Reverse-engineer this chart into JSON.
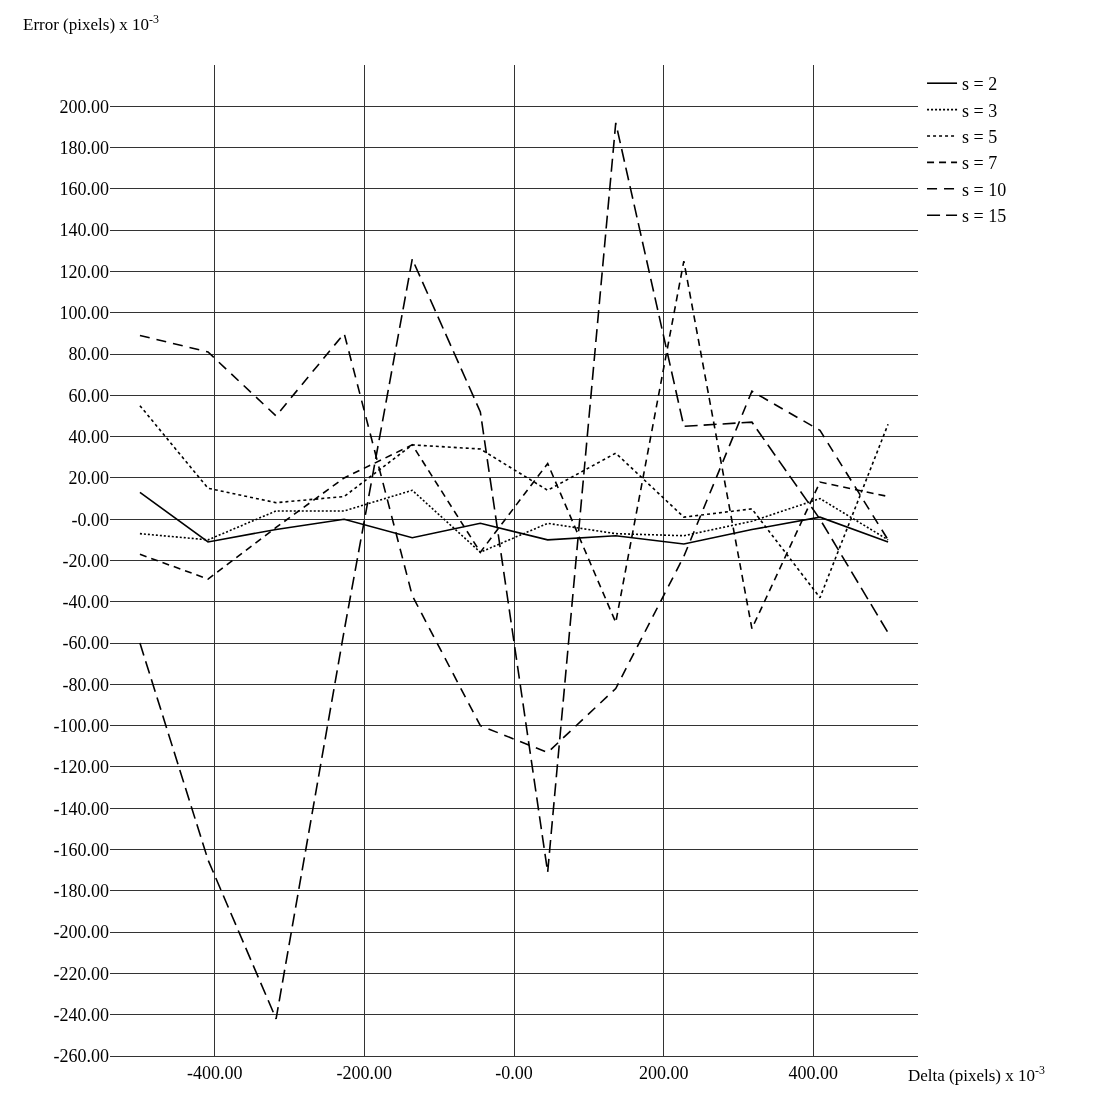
{
  "chart_data": {
    "type": "line",
    "xlabel": "Delta (pixels) x 10$^{-3}$",
    "ylabel": "Error (pixels) x 10$^{-3}$",
    "x": [
      -500,
      -409,
      -318,
      -227,
      -136,
      -45,
      45,
      136,
      227,
      318,
      409,
      500
    ],
    "series": [
      {
        "name": "s = 2",
        "color": "#000000",
        "line_style": "solid",
        "values": [
          13,
          -11,
          -5,
          0,
          -9,
          -2,
          -10,
          -8,
          -12,
          -5,
          1,
          -11
        ]
      },
      {
        "name": "s = 3",
        "color": "#000000",
        "line_style": "dotted",
        "values": [
          -7,
          -10,
          4,
          4,
          14,
          -16,
          -2,
          -7,
          -8,
          -1,
          10,
          -10
        ]
      },
      {
        "name": "s = 5",
        "color": "#000000",
        "line_style": "dashed",
        "values": [
          55,
          15,
          8,
          11,
          36,
          34,
          14,
          32,
          1,
          5,
          -38,
          46
        ]
      },
      {
        "name": "s = 7",
        "color": "#000000",
        "line_style": "dashed",
        "values": [
          -17,
          -29,
          -4,
          20,
          36,
          -16,
          27,
          -50,
          125,
          -53,
          18,
          11
        ]
      },
      {
        "name": "s = 10",
        "color": "#000000",
        "line_style": "dashed",
        "values": [
          89,
          81,
          50,
          90,
          -37,
          -100,
          -113,
          -82,
          -18,
          62,
          43,
          -10
        ]
      },
      {
        "name": "s = 15",
        "color": "#000000",
        "line_style": "dashed",
        "values": [
          -60,
          -165,
          -242,
          -54,
          126,
          52,
          -171,
          192,
          45,
          47,
          0,
          -55
        ]
      }
    ],
    "xlim": [
      -540,
      540
    ],
    "xticks": [
      {
        "value": -400,
        "label": "-400.00"
      },
      {
        "value": -200,
        "label": "-200.00"
      },
      {
        "value": 0,
        "label": "-0.00"
      },
      {
        "value": 200,
        "label": "200.00"
      },
      {
        "value": 400,
        "label": "400.00"
      }
    ],
    "ylim": [
      -260,
      220
    ],
    "yticks": [
      {
        "value": -260,
        "label": "-260.00"
      },
      {
        "value": -240,
        "label": "-240.00"
      },
      {
        "value": -220,
        "label": "-220.00"
      },
      {
        "value": -200,
        "label": "-200.00"
      },
      {
        "value": -180,
        "label": "-180.00"
      },
      {
        "value": -160,
        "label": "-160.00"
      },
      {
        "value": -140,
        "label": "-140.00"
      },
      {
        "value": -120,
        "label": "-120.00"
      },
      {
        "value": -100,
        "label": "-100.00"
      },
      {
        "value": -80,
        "label": "-80.00"
      },
      {
        "value": -60,
        "label": "-60.00"
      },
      {
        "value": -40,
        "label": "-40.00"
      },
      {
        "value": -20,
        "label": "-20.00"
      },
      {
        "value": 0,
        "label": "-0.00"
      },
      {
        "value": 20,
        "label": "20.00"
      },
      {
        "value": 40,
        "label": "40.00"
      },
      {
        "value": 60,
        "label": "60.00"
      },
      {
        "value": 80,
        "label": "80.00"
      },
      {
        "value": 100,
        "label": "100.00"
      },
      {
        "value": 120,
        "label": "120.00"
      },
      {
        "value": 140,
        "label": "140.00"
      },
      {
        "value": 160,
        "label": "160.00"
      },
      {
        "value": 180,
        "label": "180.00"
      },
      {
        "value": 200,
        "label": "200.00"
      }
    ],
    "grid": true,
    "legend": "top right"
  }
}
